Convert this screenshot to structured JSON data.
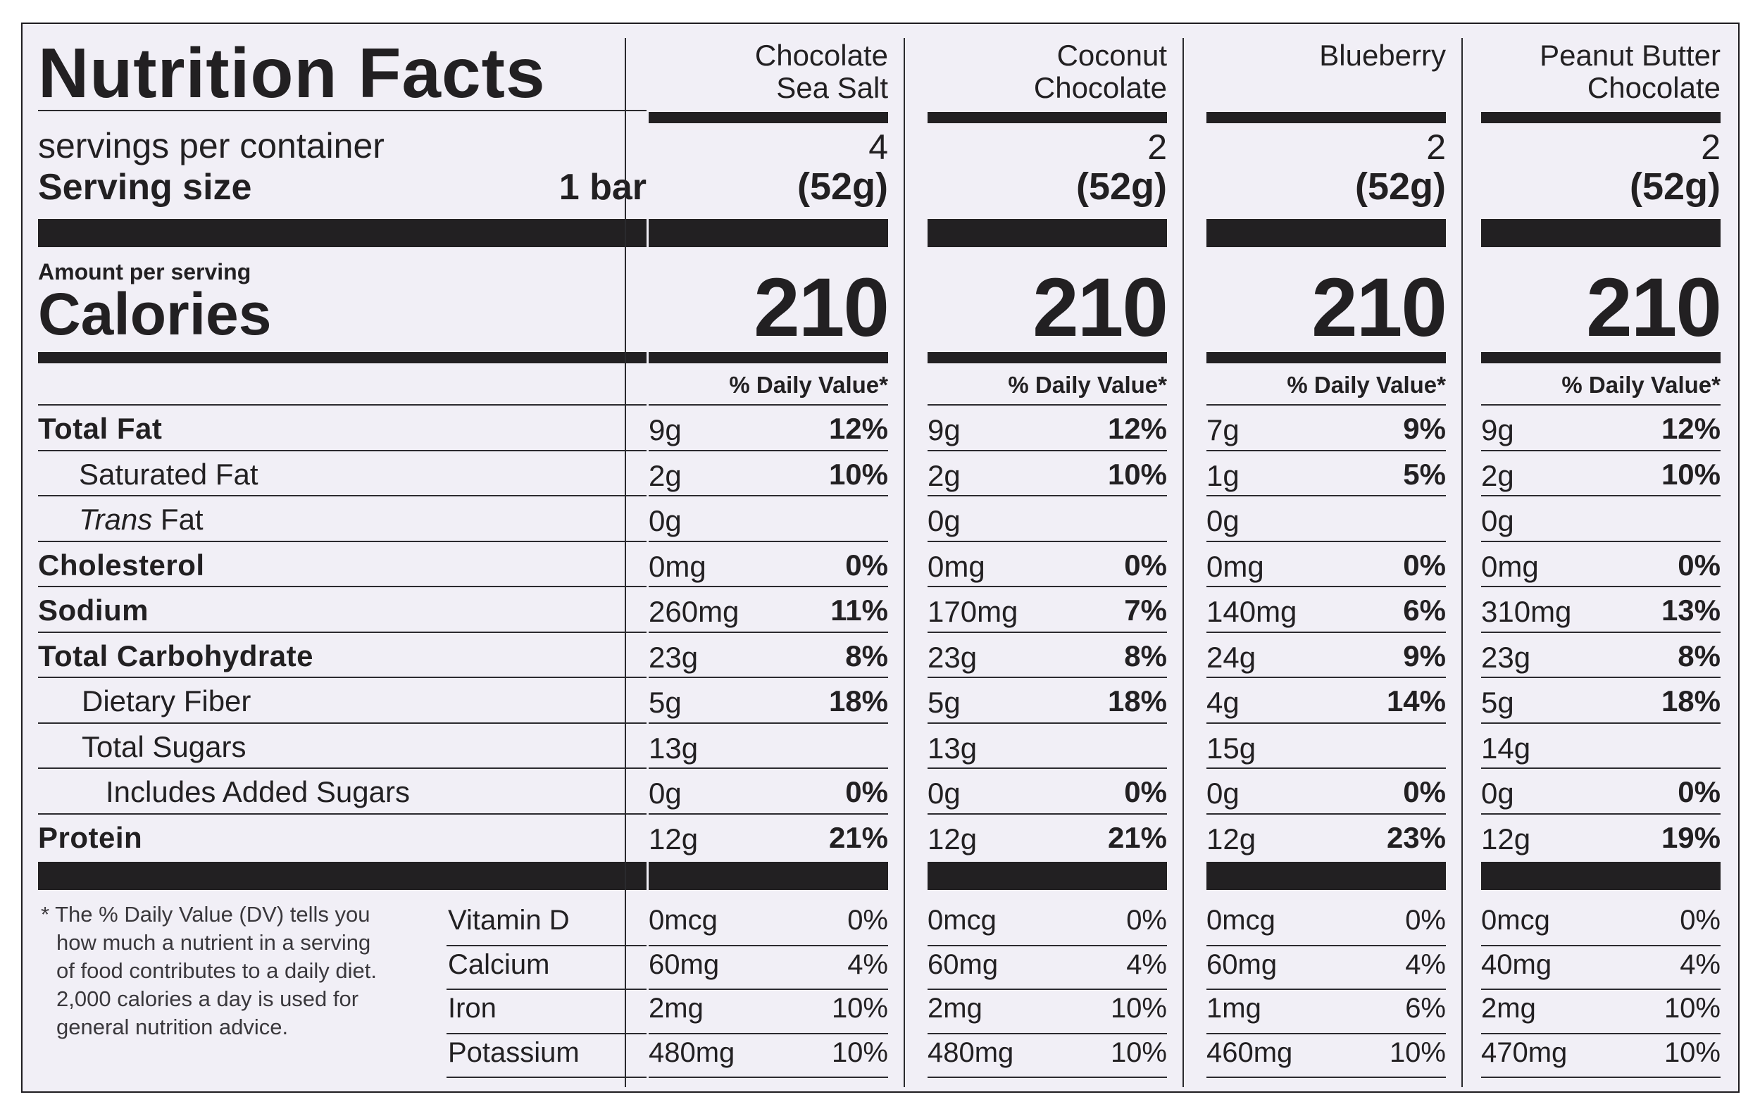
{
  "header": {
    "title": "Nutrition Facts",
    "servings_label": "servings per container",
    "serving_size_label": "Serving size",
    "serving_size_value": "1 bar",
    "amount_per_serving": "Amount per serving",
    "calories_label": "Calories"
  },
  "nutrient_labels": [
    {
      "name": "Total Fat"
    },
    {
      "name": "Saturated Fat"
    },
    {
      "prefix": "Trans",
      "name": " Fat"
    },
    {
      "name": "Cholesterol"
    },
    {
      "name": "Sodium"
    },
    {
      "name": "Total Carbohydrate"
    },
    {
      "name": "Dietary Fiber"
    },
    {
      "name": "Total Sugars"
    },
    {
      "name": "Includes Added Sugars"
    },
    {
      "name": "Protein"
    }
  ],
  "vitamin_labels": [
    "Vitamin D",
    "Calcium",
    "Iron",
    "Potassium"
  ],
  "footnote": "* The % Daily Value (DV) tells you how much a nutrient in a serving of food contributes to a daily diet. 2,000 calories a day is used for general nutrition advice.",
  "products": [
    {
      "name_line1": "Chocolate",
      "name_line2": "Sea Salt",
      "servings": "4",
      "serving_grams": "(52g)",
      "calories": "210",
      "dv_header": "% Daily Value*",
      "nutrients": [
        {
          "amount": "9g",
          "dv": "12%"
        },
        {
          "amount": "2g",
          "dv": "10%"
        },
        {
          "amount": "0g",
          "dv": ""
        },
        {
          "amount": "0mg",
          "dv": "0%"
        },
        {
          "amount": "260mg",
          "dv": "11%"
        },
        {
          "amount": "23g",
          "dv": "8%"
        },
        {
          "amount": "5g",
          "dv": "18%"
        },
        {
          "amount": "13g",
          "dv": ""
        },
        {
          "amount": "0g",
          "dv": "0%"
        },
        {
          "amount": "12g",
          "dv": "21%"
        }
      ],
      "vitamins": [
        {
          "amount": "0mcg",
          "dv": "0%"
        },
        {
          "amount": "60mg",
          "dv": "4%"
        },
        {
          "amount": "2mg",
          "dv": "10%"
        },
        {
          "amount": "480mg",
          "dv": "10%"
        }
      ]
    },
    {
      "name_line1": "Coconut",
      "name_line2": "Chocolate",
      "servings": "2",
      "serving_grams": "(52g)",
      "calories": "210",
      "dv_header": "% Daily Value*",
      "nutrients": [
        {
          "amount": "9g",
          "dv": "12%"
        },
        {
          "amount": "2g",
          "dv": "10%"
        },
        {
          "amount": "0g",
          "dv": ""
        },
        {
          "amount": "0mg",
          "dv": "0%"
        },
        {
          "amount": "170mg",
          "dv": "7%"
        },
        {
          "amount": "23g",
          "dv": "8%"
        },
        {
          "amount": "5g",
          "dv": "18%"
        },
        {
          "amount": "13g",
          "dv": ""
        },
        {
          "amount": "0g",
          "dv": "0%"
        },
        {
          "amount": "12g",
          "dv": "21%"
        }
      ],
      "vitamins": [
        {
          "amount": "0mcg",
          "dv": "0%"
        },
        {
          "amount": "60mg",
          "dv": "4%"
        },
        {
          "amount": "2mg",
          "dv": "10%"
        },
        {
          "amount": "480mg",
          "dv": "10%"
        }
      ]
    },
    {
      "name_line1": "Blueberry",
      "name_line2": "",
      "servings": "2",
      "serving_grams": "(52g)",
      "calories": "210",
      "dv_header": "% Daily Value*",
      "nutrients": [
        {
          "amount": "7g",
          "dv": "9%"
        },
        {
          "amount": "1g",
          "dv": "5%"
        },
        {
          "amount": "0g",
          "dv": ""
        },
        {
          "amount": "0mg",
          "dv": "0%"
        },
        {
          "amount": "140mg",
          "dv": "6%"
        },
        {
          "amount": "24g",
          "dv": "9%"
        },
        {
          "amount": "4g",
          "dv": "14%"
        },
        {
          "amount": "15g",
          "dv": ""
        },
        {
          "amount": "0g",
          "dv": "0%"
        },
        {
          "amount": "12g",
          "dv": "23%"
        }
      ],
      "vitamins": [
        {
          "amount": "0mcg",
          "dv": "0%"
        },
        {
          "amount": "60mg",
          "dv": "4%"
        },
        {
          "amount": "1mg",
          "dv": "6%"
        },
        {
          "amount": "460mg",
          "dv": "10%"
        }
      ]
    },
    {
      "name_line1": "Peanut Butter",
      "name_line2": "Chocolate",
      "servings": "2",
      "serving_grams": "(52g)",
      "calories": "210",
      "dv_header": "% Daily Value*",
      "nutrients": [
        {
          "amount": "9g",
          "dv": "12%"
        },
        {
          "amount": "2g",
          "dv": "10%"
        },
        {
          "amount": "0g",
          "dv": ""
        },
        {
          "amount": "0mg",
          "dv": "0%"
        },
        {
          "amount": "310mg",
          "dv": "13%"
        },
        {
          "amount": "23g",
          "dv": "8%"
        },
        {
          "amount": "5g",
          "dv": "18%"
        },
        {
          "amount": "14g",
          "dv": ""
        },
        {
          "amount": "0g",
          "dv": "0%"
        },
        {
          "amount": "12g",
          "dv": "19%"
        }
      ],
      "vitamins": [
        {
          "amount": "0mcg",
          "dv": "0%"
        },
        {
          "amount": "40mg",
          "dv": "4%"
        },
        {
          "amount": "2mg",
          "dv": "10%"
        },
        {
          "amount": "470mg",
          "dv": "10%"
        }
      ]
    }
  ]
}
